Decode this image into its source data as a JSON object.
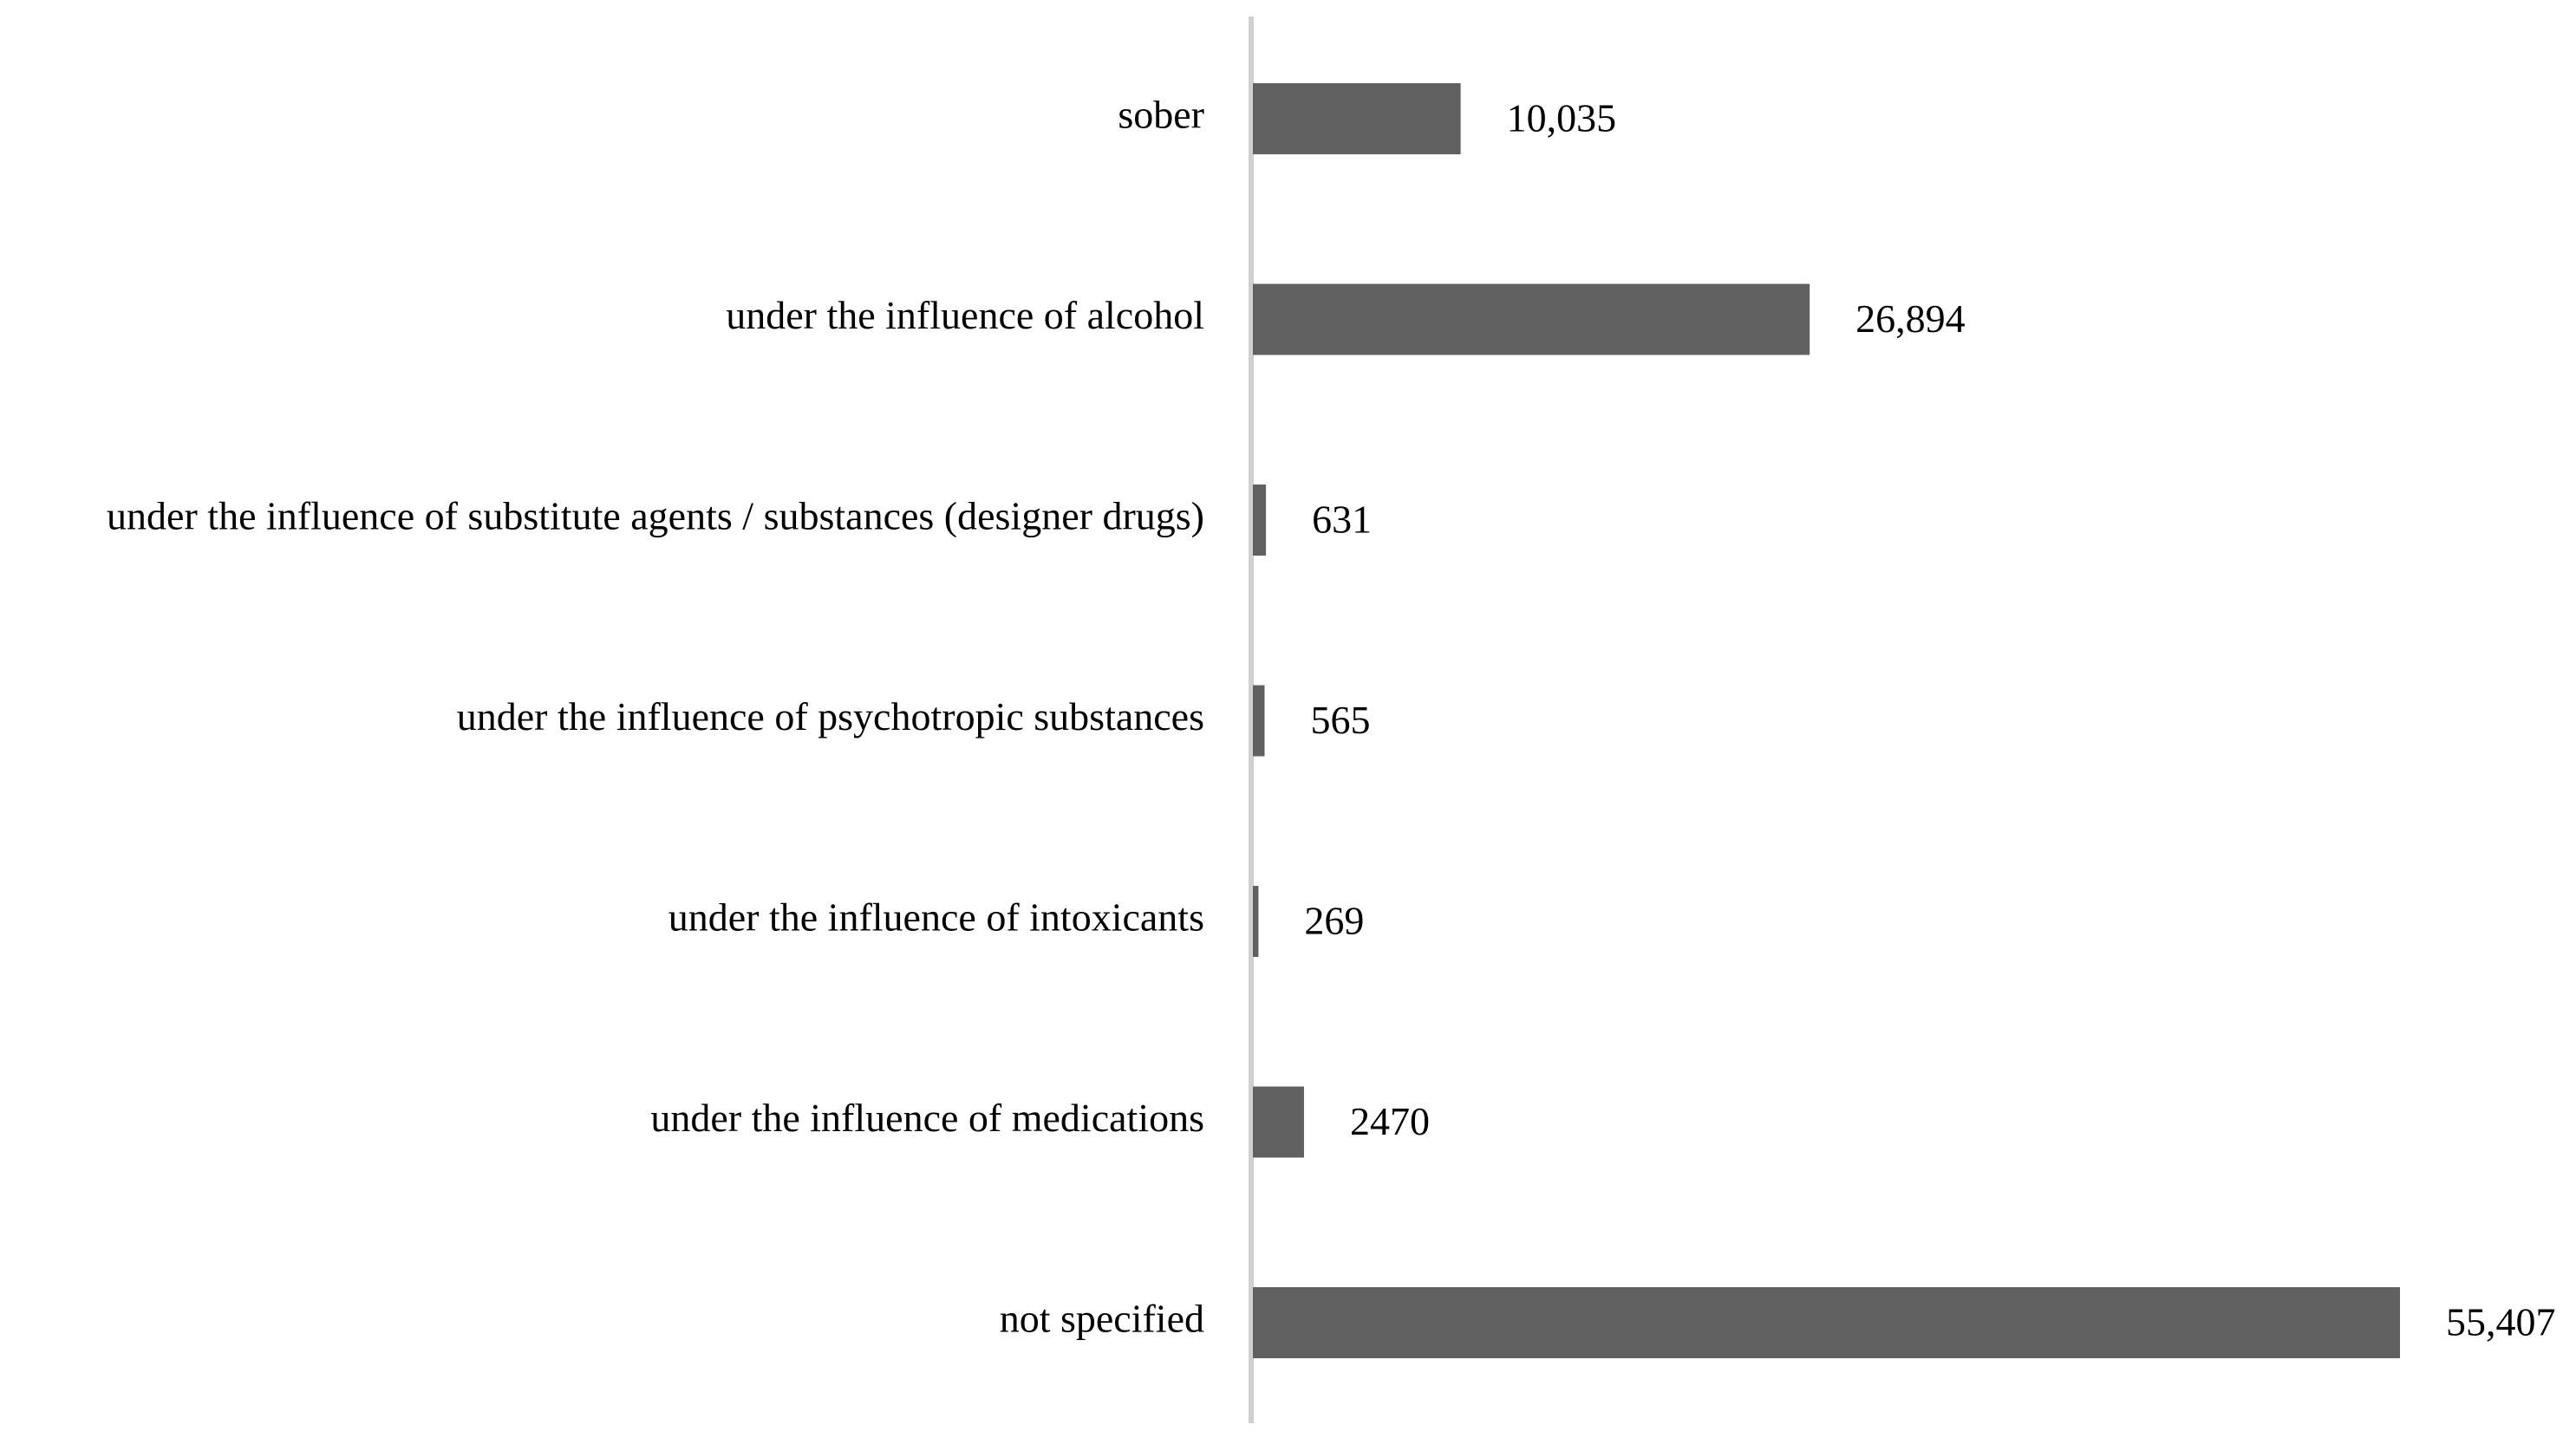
{
  "chart_data": {
    "type": "bar",
    "orientation": "horizontal",
    "categories": [
      "sober",
      "under the influence of alcohol",
      "under the influence of substitute agents / substances (designer drugs)",
      "under the influence of psychotropic substances",
      "under the influence of intoxicants",
      "under the influence of medications",
      "not specified"
    ],
    "values": [
      10035,
      26894,
      631,
      565,
      269,
      2470,
      55407
    ],
    "value_labels": [
      "10,035",
      "26,894",
      "631",
      "565",
      "269",
      "2470",
      "55,407"
    ],
    "color": "#606060"
  }
}
